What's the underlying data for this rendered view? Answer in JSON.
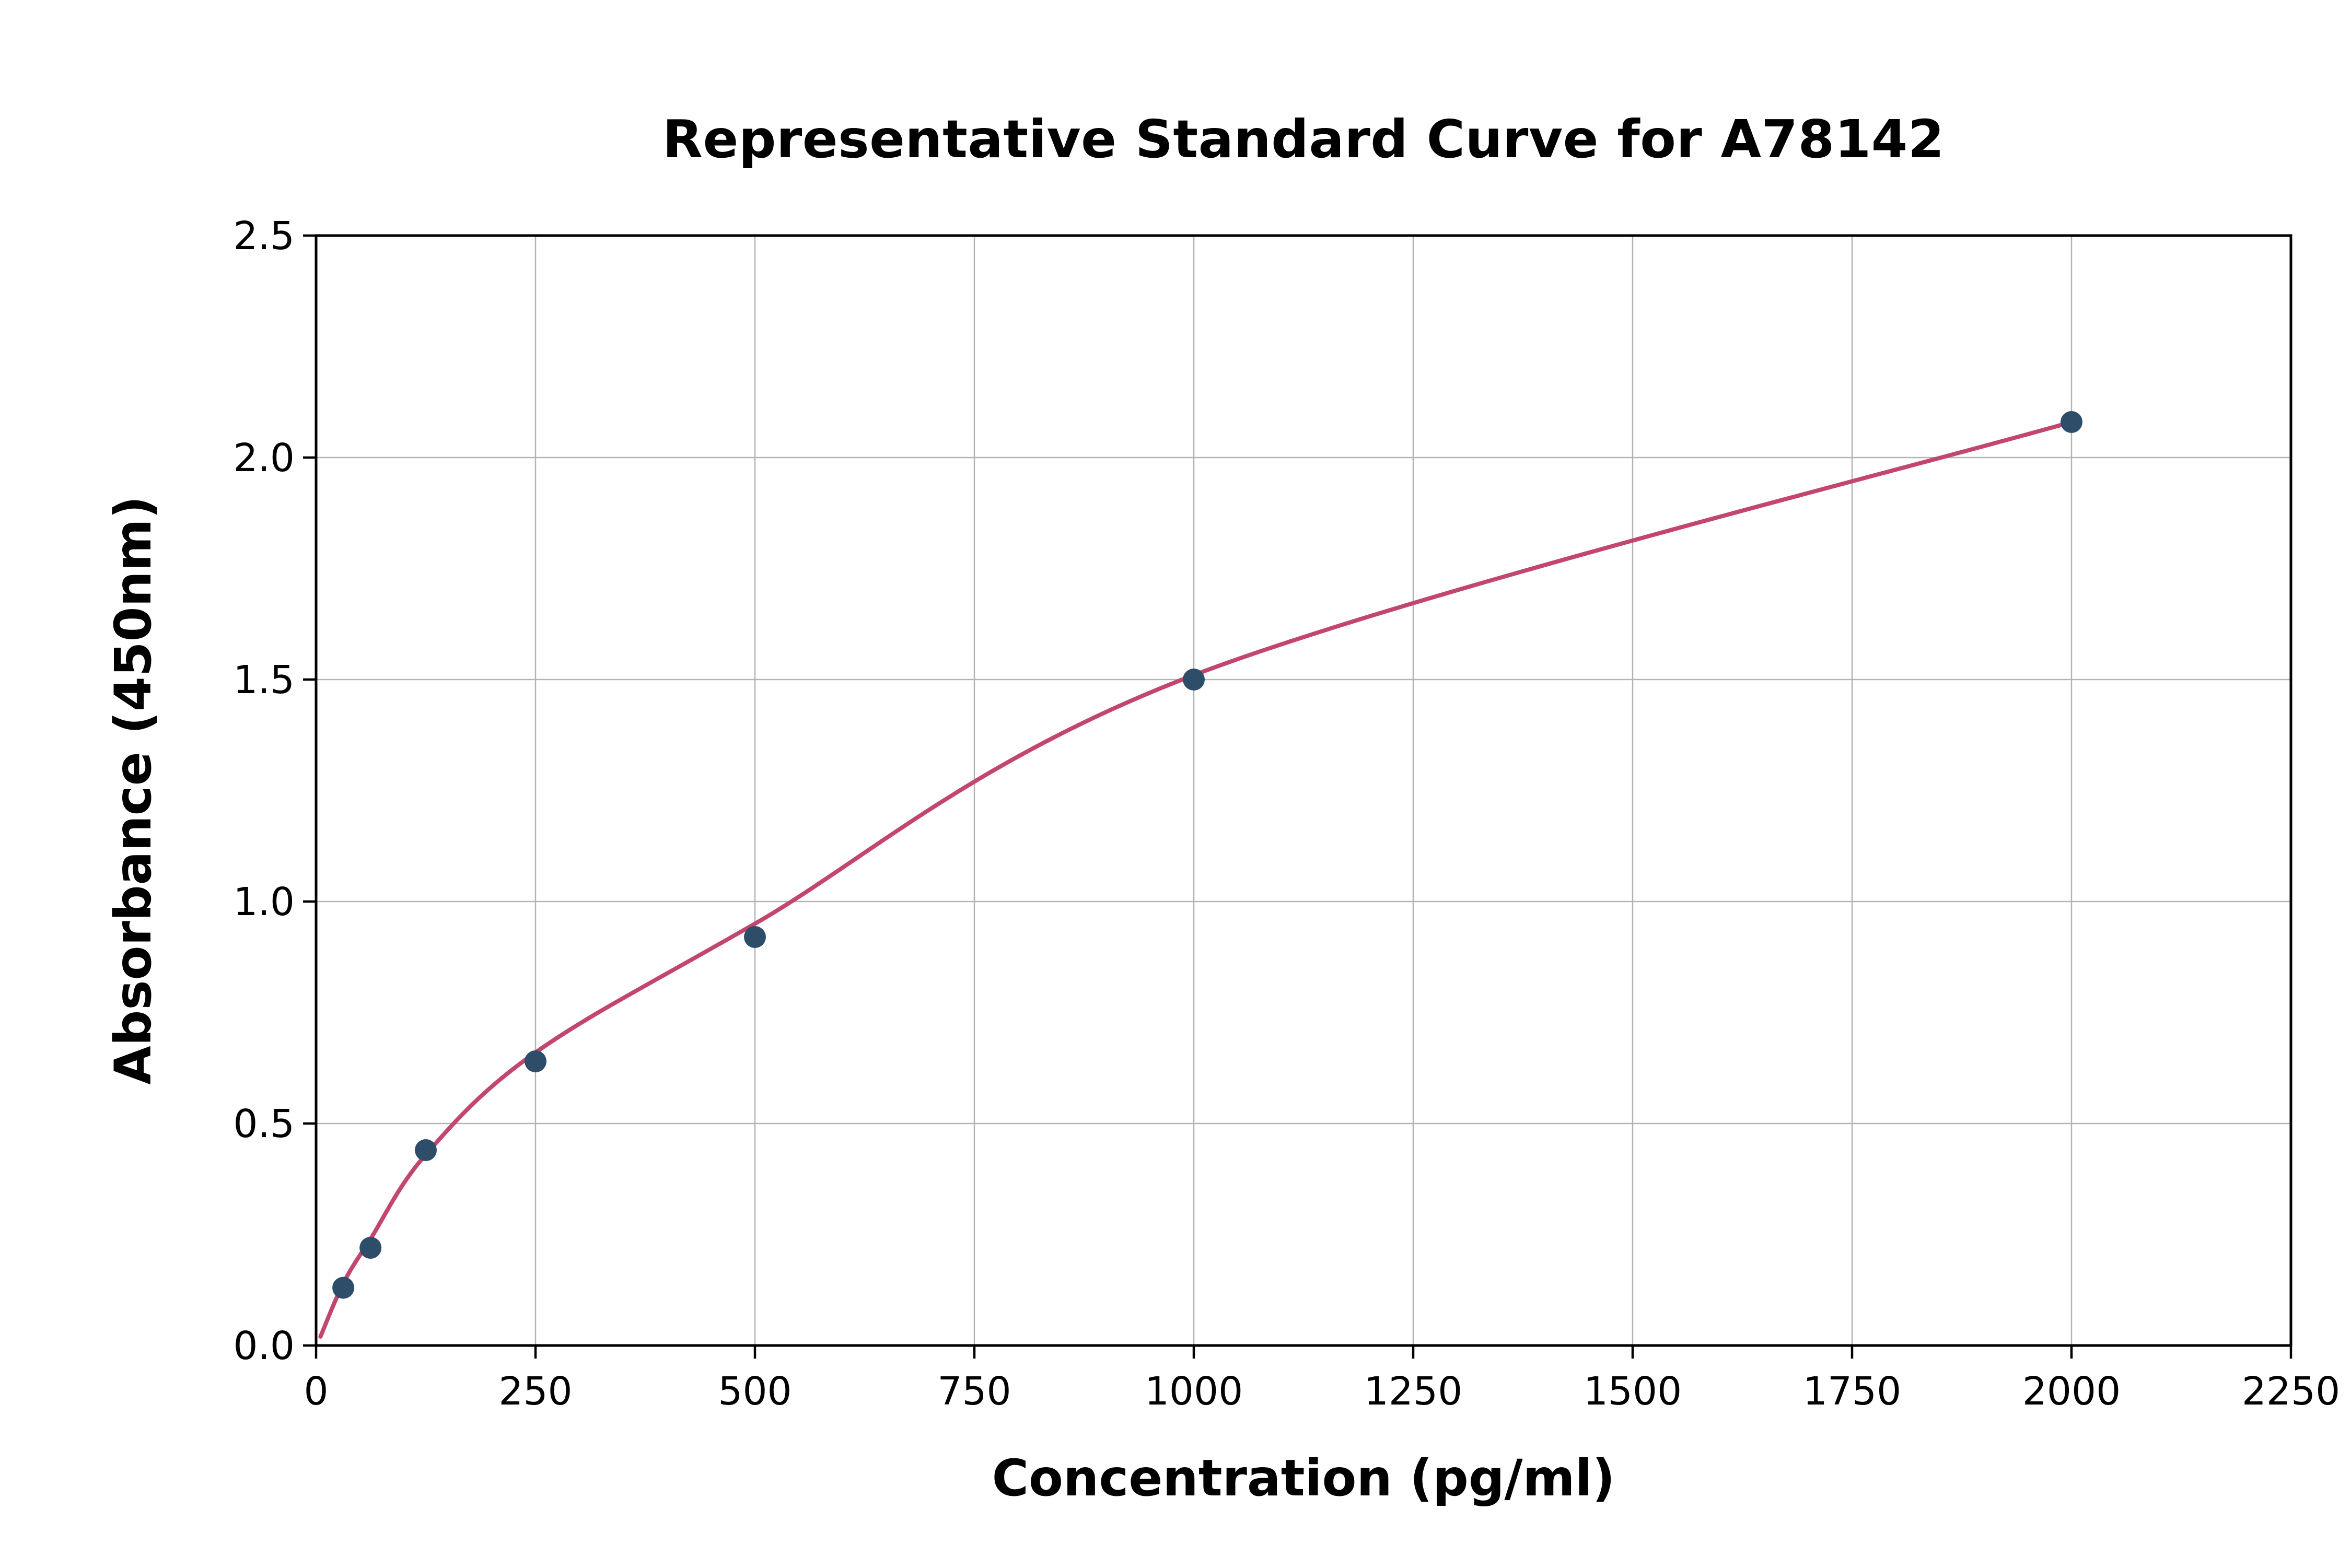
{
  "chart_data": {
    "type": "scatter",
    "title": "Representative Standard Curve for A78142",
    "xlabel": "Concentration (pg/ml)",
    "ylabel": "Absorbance (450nm)",
    "xlim": [
      0,
      2250
    ],
    "ylim": [
      0,
      2.5
    ],
    "grid": true,
    "legend": "none",
    "x_ticks": [
      0,
      250,
      500,
      750,
      1000,
      1250,
      1500,
      1750,
      2000,
      2250
    ],
    "x_tick_labels": [
      "0",
      "250",
      "500",
      "750",
      "1000",
      "1250",
      "1500",
      "1750",
      "2000",
      "2250"
    ],
    "y_ticks": [
      0,
      0.5,
      1,
      1.5,
      2,
      2.5
    ],
    "y_tick_labels": [
      "0.0",
      "0.5",
      "1.0",
      "1.5",
      "2.0",
      "2.5"
    ],
    "series": [
      {
        "name": "standard-points",
        "style": "points",
        "x": [
          31,
          62,
          125,
          250,
          500,
          1000,
          2000
        ],
        "y": [
          0.13,
          0.22,
          0.44,
          0.64,
          0.92,
          1.5,
          2.08
        ]
      },
      {
        "name": "fitted-curve",
        "style": "smooth-line",
        "x": [
          5,
          31,
          62,
          125,
          250,
          500,
          1000,
          2000
        ],
        "y": [
          0.02,
          0.14,
          0.24,
          0.43,
          0.66,
          0.95,
          1.51,
          2.08
        ]
      }
    ],
    "colors": {
      "point": "#2e4d68",
      "curve": "#c2466d",
      "grid": "#b3b3b3",
      "axis": "#000000",
      "background": "#ffffff"
    }
  }
}
